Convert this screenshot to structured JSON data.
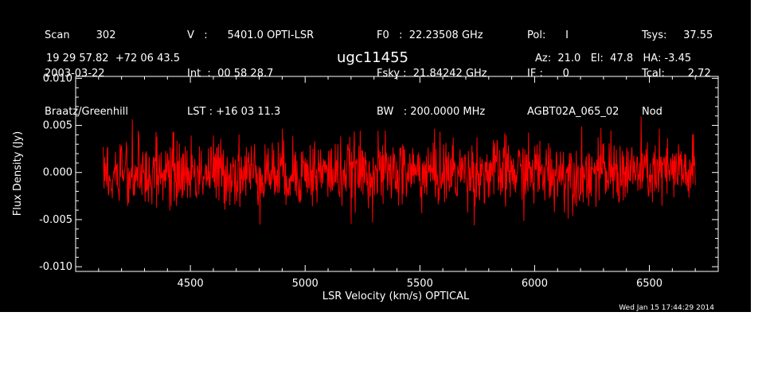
{
  "header": {
    "col1": [
      "Scan        302",
      "2003-03-22",
      "Braatz/Greenhill"
    ],
    "col2": [
      "V   :      5401.0 OPTI-LSR",
      "Int  :  00 58 28.7",
      "LST : +16 03 11.3"
    ],
    "col3": [
      "F0   :  22.23508 GHz",
      "Fsky :  21.84242 GHz",
      "BW   : 200.0000 MHz"
    ],
    "col4": [
      "Pol:      I",
      "IF :      0",
      "AGBT02A_065_02"
    ],
    "col5": [
      "Tsys:     37.55",
      "Tcal:       2.72",
      "Nod"
    ],
    "coords": "19 29 57.82  +72 06 43.5",
    "source": "ugc11455",
    "pointing": "Az:  21.0   El:  47.8   HA: -3.45",
    "timestamp": "Wed Jan 15 17:44:29 2014"
  },
  "chart_data": {
    "type": "line",
    "title": "ugc11455",
    "xlabel": "LSR Velocity (km/s) OPTICAL",
    "ylabel": "Flux Density (Jy)",
    "xlim": [
      4000,
      6800
    ],
    "ylim": [
      -0.0105,
      0.0102
    ],
    "xticks": [
      4500,
      5000,
      5500,
      6000,
      6500
    ],
    "xtick_labels": [
      "4500",
      "5000",
      "5500",
      "6000",
      "6500"
    ],
    "yticks": [
      -0.01,
      -0.005,
      0.0,
      0.005,
      0.01
    ],
    "ytick_labels": [
      "-0.010",
      "-0.005",
      "0.000",
      "0.005",
      "0.010"
    ],
    "series": [
      {
        "color": "#ff0000",
        "x_range": [
          4120,
          6700
        ],
        "n_points": 1300,
        "noise_sigma": 0.0018,
        "mean": 0.0
      }
    ]
  }
}
